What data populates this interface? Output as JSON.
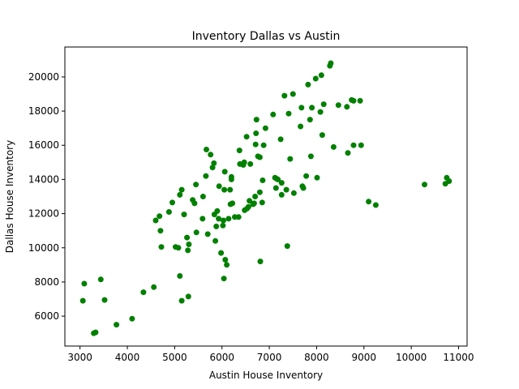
{
  "chart_data": {
    "type": "scatter",
    "title": "Inventory Dallas vs Austin",
    "xlabel": "Austin House Inventory",
    "ylabel": "Dallas House Inventory",
    "xlim": [
      2680,
      11180
    ],
    "ylim": [
      4250,
      21750
    ],
    "xticks": [
      3000,
      4000,
      5000,
      6000,
      7000,
      8000,
      9000,
      10000,
      11000
    ],
    "yticks": [
      6000,
      8000,
      10000,
      12000,
      14000,
      16000,
      18000,
      20000
    ],
    "grid": false,
    "marker_color": "#008000",
    "points": [
      [
        3060,
        6900
      ],
      [
        3090,
        7900
      ],
      [
        3290,
        5000
      ],
      [
        3330,
        5050
      ],
      [
        3440,
        8150
      ],
      [
        3520,
        6950
      ],
      [
        3770,
        5500
      ],
      [
        4100,
        5850
      ],
      [
        4340,
        7400
      ],
      [
        4560,
        7700
      ],
      [
        4600,
        11600
      ],
      [
        4680,
        11850
      ],
      [
        4700,
        11000
      ],
      [
        4720,
        10050
      ],
      [
        4880,
        12100
      ],
      [
        4950,
        12650
      ],
      [
        5020,
        10050
      ],
      [
        5080,
        10000
      ],
      [
        5110,
        8350
      ],
      [
        5110,
        13100
      ],
      [
        5150,
        13400
      ],
      [
        5150,
        6900
      ],
      [
        5200,
        11950
      ],
      [
        5260,
        10600
      ],
      [
        5280,
        9850
      ],
      [
        5290,
        7150
      ],
      [
        5300,
        10200
      ],
      [
        5380,
        12800
      ],
      [
        5420,
        12600
      ],
      [
        5450,
        13700
      ],
      [
        5460,
        10900
      ],
      [
        5590,
        11700
      ],
      [
        5600,
        13000
      ],
      [
        5660,
        14200
      ],
      [
        5670,
        15750
      ],
      [
        5700,
        10800
      ],
      [
        5760,
        15450
      ],
      [
        5800,
        14700
      ],
      [
        5830,
        14950
      ],
      [
        5840,
        11950
      ],
      [
        5860,
        10400
      ],
      [
        5880,
        11250
      ],
      [
        5900,
        12150
      ],
      [
        5930,
        11700
      ],
      [
        5940,
        13600
      ],
      [
        5980,
        9700
      ],
      [
        6020,
        11300
      ],
      [
        6030,
        11600
      ],
      [
        6040,
        8200
      ],
      [
        6050,
        13400
      ],
      [
        6060,
        14450
      ],
      [
        6070,
        9300
      ],
      [
        6100,
        9000
      ],
      [
        6140,
        11700
      ],
      [
        6170,
        13400
      ],
      [
        6180,
        12550
      ],
      [
        6200,
        14150
      ],
      [
        6200,
        14000
      ],
      [
        6220,
        12600
      ],
      [
        6270,
        11800
      ],
      [
        6350,
        11800
      ],
      [
        6370,
        15700
      ],
      [
        6380,
        14900
      ],
      [
        6450,
        14850
      ],
      [
        6470,
        15000
      ],
      [
        6480,
        12200
      ],
      [
        6520,
        16500
      ],
      [
        6530,
        12300
      ],
      [
        6560,
        12400
      ],
      [
        6580,
        12750
      ],
      [
        6600,
        14900
      ],
      [
        6660,
        12550
      ],
      [
        6680,
        12600
      ],
      [
        6700,
        13000
      ],
      [
        6710,
        16050
      ],
      [
        6720,
        16700
      ],
      [
        6730,
        17500
      ],
      [
        6760,
        15350
      ],
      [
        6800,
        15300
      ],
      [
        6800,
        13250
      ],
      [
        6810,
        9200
      ],
      [
        6850,
        12650
      ],
      [
        6860,
        13950
      ],
      [
        6880,
        16000
      ],
      [
        6920,
        17000
      ],
      [
        7080,
        17800
      ],
      [
        7120,
        14100
      ],
      [
        7140,
        13500
      ],
      [
        7150,
        14050
      ],
      [
        7180,
        14000
      ],
      [
        7240,
        16350
      ],
      [
        7260,
        13800
      ],
      [
        7260,
        13100
      ],
      [
        7320,
        18900
      ],
      [
        7360,
        13400
      ],
      [
        7380,
        10100
      ],
      [
        7410,
        17850
      ],
      [
        7440,
        15200
      ],
      [
        7500,
        19000
      ],
      [
        7520,
        13200
      ],
      [
        7660,
        17100
      ],
      [
        7680,
        18200
      ],
      [
        7700,
        13600
      ],
      [
        7720,
        13500
      ],
      [
        7780,
        14200
      ],
      [
        7820,
        19550
      ],
      [
        7860,
        17500
      ],
      [
        7880,
        15350
      ],
      [
        7900,
        18200
      ],
      [
        7980,
        19900
      ],
      [
        8010,
        14100
      ],
      [
        8080,
        17950
      ],
      [
        8100,
        20100
      ],
      [
        8120,
        16600
      ],
      [
        8150,
        18400
      ],
      [
        8280,
        20650
      ],
      [
        8300,
        20800
      ],
      [
        8360,
        15900
      ],
      [
        8460,
        18350
      ],
      [
        8640,
        18250
      ],
      [
        8660,
        15550
      ],
      [
        8740,
        18650
      ],
      [
        8780,
        18600
      ],
      [
        8780,
        16000
      ],
      [
        8920,
        18600
      ],
      [
        8940,
        16000
      ],
      [
        9100,
        12700
      ],
      [
        9250,
        12500
      ],
      [
        10280,
        13700
      ],
      [
        10720,
        13750
      ],
      [
        10750,
        14100
      ],
      [
        10800,
        13900
      ]
    ]
  }
}
